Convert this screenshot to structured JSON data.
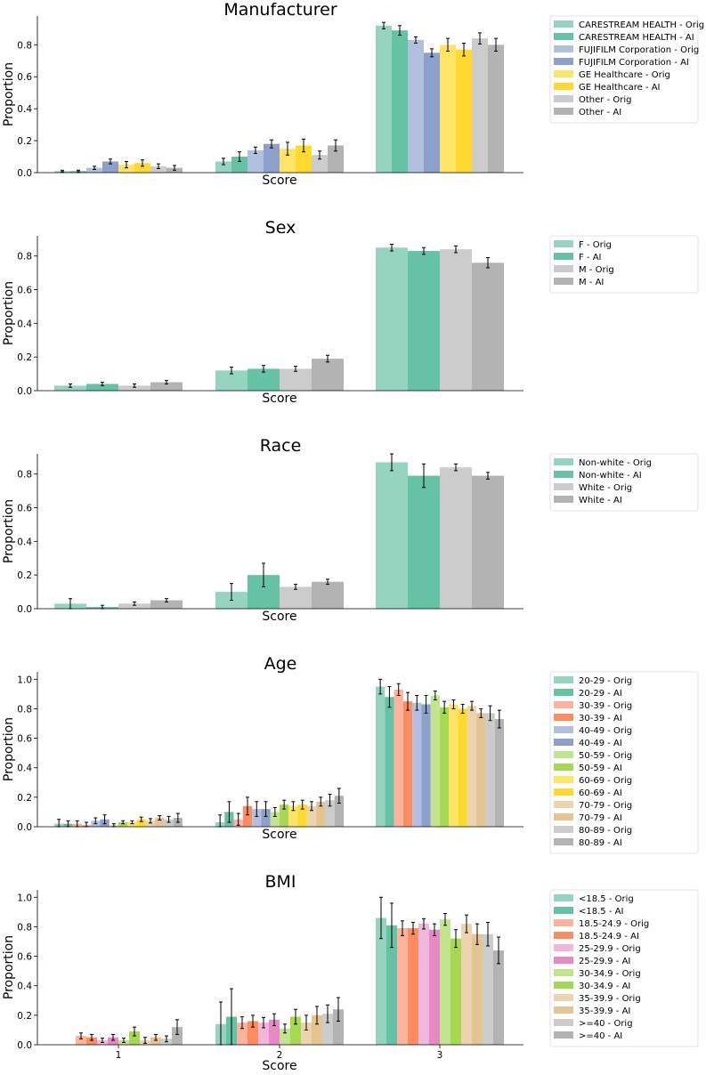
{
  "chart_data": [
    {
      "type": "bar",
      "title": "Manufacturer",
      "xlabel": "Score",
      "ylabel": "Proportion",
      "categories": [
        "1",
        "2",
        "3"
      ],
      "show_xtick_labels": false,
      "ylim": [
        0,
        0.98
      ],
      "yticks": [
        "0.0",
        "0.2",
        "0.4",
        "0.6",
        "0.8"
      ],
      "series": [
        {
          "name": "CARESTREAM HEALTH - Orig",
          "color": "#95d5c0",
          "values": [
            0.01,
            0.07,
            0.92
          ],
          "errors": [
            0.005,
            0.02,
            0.02
          ]
        },
        {
          "name": "CARESTREAM HEALTH - AI",
          "color": "#66c2a5",
          "values": [
            0.01,
            0.1,
            0.89
          ],
          "errors": [
            0.005,
            0.03,
            0.03
          ]
        },
        {
          "name": "FUJIFILM Corporation - Orig",
          "color": "#b3bfdf",
          "values": [
            0.03,
            0.14,
            0.83
          ],
          "errors": [
            0.01,
            0.02,
            0.02
          ]
        },
        {
          "name": "FUJIFILM Corporation - AI",
          "color": "#8da0cb",
          "values": [
            0.07,
            0.18,
            0.75
          ],
          "errors": [
            0.015,
            0.025,
            0.025
          ]
        },
        {
          "name": "GE Healthcare - Orig",
          "color": "#ffe466",
          "values": [
            0.05,
            0.15,
            0.8
          ],
          "errors": [
            0.02,
            0.04,
            0.04
          ]
        },
        {
          "name": "GE Healthcare - AI",
          "color": "#ffd92f",
          "values": [
            0.06,
            0.17,
            0.77
          ],
          "errors": [
            0.02,
            0.04,
            0.04
          ]
        },
        {
          "name": "Other - Orig",
          "color": "#cccccc",
          "values": [
            0.04,
            0.11,
            0.84
          ],
          "errors": [
            0.015,
            0.025,
            0.035
          ]
        },
        {
          "name": "Other - AI",
          "color": "#b3b3b3",
          "values": [
            0.03,
            0.17,
            0.8
          ],
          "errors": [
            0.015,
            0.035,
            0.04
          ]
        }
      ]
    },
    {
      "type": "bar",
      "title": "Sex",
      "xlabel": "Score",
      "ylabel": "Proportion",
      "categories": [
        "1",
        "2",
        "3"
      ],
      "show_xtick_labels": false,
      "ylim": [
        0,
        0.92
      ],
      "yticks": [
        "0.0",
        "0.2",
        "0.4",
        "0.6",
        "0.8"
      ],
      "series": [
        {
          "name": "F - Orig",
          "color": "#95d5c0",
          "values": [
            0.03,
            0.12,
            0.85
          ],
          "errors": [
            0.01,
            0.02,
            0.02
          ]
        },
        {
          "name": "F - AI",
          "color": "#66c2a5",
          "values": [
            0.04,
            0.13,
            0.83
          ],
          "errors": [
            0.01,
            0.02,
            0.02
          ]
        },
        {
          "name": "M - Orig",
          "color": "#cccccc",
          "values": [
            0.03,
            0.13,
            0.84
          ],
          "errors": [
            0.01,
            0.015,
            0.02
          ]
        },
        {
          "name": "M - AI",
          "color": "#b3b3b3",
          "values": [
            0.05,
            0.19,
            0.76
          ],
          "errors": [
            0.01,
            0.02,
            0.03
          ]
        }
      ]
    },
    {
      "type": "bar",
      "title": "Race",
      "xlabel": "Score",
      "ylabel": "Proportion",
      "categories": [
        "1",
        "2",
        "3"
      ],
      "show_xtick_labels": false,
      "ylim": [
        0,
        0.92
      ],
      "yticks": [
        "0.0",
        "0.2",
        "0.4",
        "0.6",
        "0.8"
      ],
      "series": [
        {
          "name": "Non-white - Orig",
          "color": "#95d5c0",
          "values": [
            0.03,
            0.1,
            0.87
          ],
          "errors": [
            0.03,
            0.05,
            0.05
          ]
        },
        {
          "name": "Non-white - AI",
          "color": "#66c2a5",
          "values": [
            0.01,
            0.2,
            0.79
          ],
          "errors": [
            0.01,
            0.07,
            0.07
          ]
        },
        {
          "name": "White - Orig",
          "color": "#cccccc",
          "values": [
            0.03,
            0.13,
            0.84
          ],
          "errors": [
            0.01,
            0.015,
            0.02
          ]
        },
        {
          "name": "White - AI",
          "color": "#b3b3b3",
          "values": [
            0.05,
            0.16,
            0.79
          ],
          "errors": [
            0.01,
            0.015,
            0.02
          ]
        }
      ]
    },
    {
      "type": "bar",
      "title": "Age",
      "xlabel": "Score",
      "ylabel": "Proportion",
      "categories": [
        "1",
        "2",
        "3"
      ],
      "show_xtick_labels": false,
      "ylim": [
        0,
        1.05
      ],
      "yticks": [
        "0.0",
        "0.2",
        "0.4",
        "0.6",
        "0.8",
        "1.0"
      ],
      "series": [
        {
          "name": "20-29 - Orig",
          "color": "#95d5c0",
          "values": [
            0.02,
            0.03,
            0.95
          ],
          "errors": [
            0.03,
            0.05,
            0.05
          ]
        },
        {
          "name": "20-29 - AI",
          "color": "#66c2a5",
          "values": [
            0.02,
            0.1,
            0.88
          ],
          "errors": [
            0.02,
            0.07,
            0.07
          ]
        },
        {
          "name": "30-39 - Orig",
          "color": "#fdb39d",
          "values": [
            0.02,
            0.05,
            0.93
          ],
          "errors": [
            0.02,
            0.04,
            0.04
          ]
        },
        {
          "name": "30-39 - AI",
          "color": "#fc8d62",
          "values": [
            0.01,
            0.14,
            0.85
          ],
          "errors": [
            0.02,
            0.06,
            0.06
          ]
        },
        {
          "name": "40-49 - Orig",
          "color": "#b3bfdf",
          "values": [
            0.04,
            0.12,
            0.84
          ],
          "errors": [
            0.02,
            0.05,
            0.05
          ]
        },
        {
          "name": "40-49 - AI",
          "color": "#8da0cb",
          "values": [
            0.05,
            0.12,
            0.83
          ],
          "errors": [
            0.03,
            0.05,
            0.06
          ]
        },
        {
          "name": "50-59 - Orig",
          "color": "#c3e48f",
          "values": [
            0.01,
            0.1,
            0.89
          ],
          "errors": [
            0.01,
            0.03,
            0.03
          ]
        },
        {
          "name": "50-59 - AI",
          "color": "#a6d854",
          "values": [
            0.03,
            0.15,
            0.81
          ],
          "errors": [
            0.01,
            0.03,
            0.04
          ]
        },
        {
          "name": "60-69 - Orig",
          "color": "#ffe466",
          "values": [
            0.03,
            0.14,
            0.83
          ],
          "errors": [
            0.01,
            0.03,
            0.03
          ]
        },
        {
          "name": "60-69 - AI",
          "color": "#ffd92f",
          "values": [
            0.05,
            0.15,
            0.8
          ],
          "errors": [
            0.015,
            0.03,
            0.03
          ]
        },
        {
          "name": "70-79 - Orig",
          "color": "#ecd5ae",
          "values": [
            0.04,
            0.14,
            0.82
          ],
          "errors": [
            0.015,
            0.03,
            0.03
          ]
        },
        {
          "name": "70-79 - AI",
          "color": "#e5c494",
          "values": [
            0.06,
            0.17,
            0.77
          ],
          "errors": [
            0.015,
            0.03,
            0.03
          ]
        },
        {
          "name": "80-89 - Orig",
          "color": "#cccccc",
          "values": [
            0.05,
            0.18,
            0.77
          ],
          "errors": [
            0.02,
            0.04,
            0.05
          ]
        },
        {
          "name": "80-89 - AI",
          "color": "#b3b3b3",
          "values": [
            0.06,
            0.21,
            0.73
          ],
          "errors": [
            0.03,
            0.05,
            0.06
          ]
        }
      ]
    },
    {
      "type": "bar",
      "title": "BMI",
      "xlabel": "Score",
      "ylabel": "Proportion",
      "categories": [
        "1",
        "2",
        "3"
      ],
      "show_xtick_labels": true,
      "ylim": [
        0,
        1.05
      ],
      "yticks": [
        "0.0",
        "0.2",
        "0.4",
        "0.6",
        "0.8",
        "1.0"
      ],
      "series": [
        {
          "name": "<18.5 - Orig",
          "color": "#95d5c0",
          "values": [
            0.0,
            0.14,
            0.86
          ],
          "errors": [
            0.0,
            0.15,
            0.14
          ]
        },
        {
          "name": "<18.5 - AI",
          "color": "#66c2a5",
          "values": [
            0.0,
            0.19,
            0.81
          ],
          "errors": [
            0.0,
            0.19,
            0.15
          ]
        },
        {
          "name": "18.5-24.9 - Orig",
          "color": "#fdb39d",
          "values": [
            0.06,
            0.15,
            0.79
          ],
          "errors": [
            0.02,
            0.04,
            0.05
          ]
        },
        {
          "name": "18.5-24.9 - AI",
          "color": "#fc8d62",
          "values": [
            0.05,
            0.16,
            0.79
          ],
          "errors": [
            0.02,
            0.04,
            0.04
          ]
        },
        {
          "name": "25-29.9 - Orig",
          "color": "#f0b6db",
          "values": [
            0.03,
            0.15,
            0.82
          ],
          "errors": [
            0.015,
            0.035,
            0.035
          ]
        },
        {
          "name": "25-29.9 - AI",
          "color": "#e78ac3",
          "values": [
            0.05,
            0.17,
            0.78
          ],
          "errors": [
            0.02,
            0.04,
            0.04
          ]
        },
        {
          "name": "30-34.9 - Orig",
          "color": "#c3e48f",
          "values": [
            0.03,
            0.11,
            0.85
          ],
          "errors": [
            0.015,
            0.03,
            0.04
          ]
        },
        {
          "name": "30-34.9 - AI",
          "color": "#a6d854",
          "values": [
            0.09,
            0.19,
            0.72
          ],
          "errors": [
            0.03,
            0.05,
            0.06
          ]
        },
        {
          "name": "35-39.9 - Orig",
          "color": "#ecd5ae",
          "values": [
            0.03,
            0.15,
            0.82
          ],
          "errors": [
            0.02,
            0.05,
            0.06
          ]
        },
        {
          "name": "35-39.9 - AI",
          "color": "#e5c494",
          "values": [
            0.05,
            0.2,
            0.75
          ],
          "errors": [
            0.02,
            0.06,
            0.07
          ]
        },
        {
          "name": ">=40 - Orig",
          "color": "#cccccc",
          "values": [
            0.04,
            0.21,
            0.75
          ],
          "errors": [
            0.02,
            0.06,
            0.08
          ]
        },
        {
          "name": ">=40 - AI",
          "color": "#b3b3b3",
          "values": [
            0.12,
            0.24,
            0.64
          ],
          "errors": [
            0.05,
            0.08,
            0.09
          ]
        }
      ]
    }
  ]
}
